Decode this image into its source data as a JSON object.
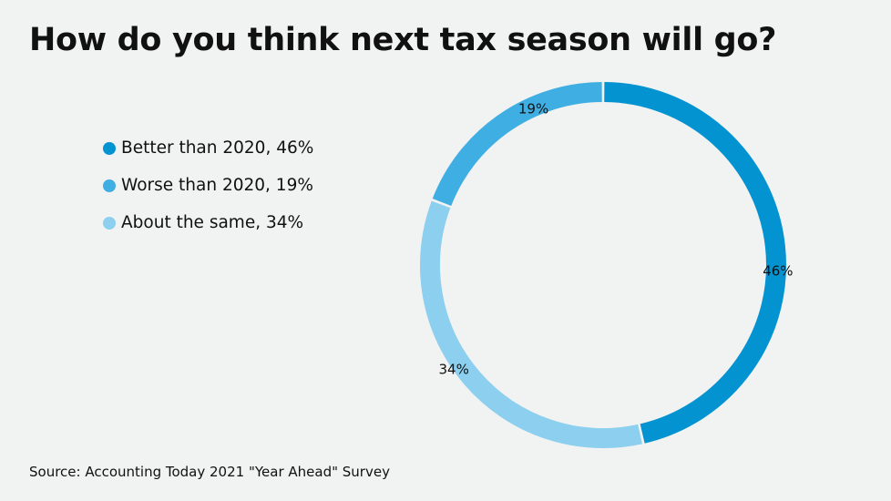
{
  "title": "How do you think next tax season will go?",
  "source": "Source: Accounting Today 2021 \"Year Ahead\" Survey",
  "chart_data": {
    "type": "pie",
    "style": "donut",
    "legend_position": "left",
    "categories": [
      "Better than 2020",
      "Worse than 2020",
      "About the same"
    ],
    "values": [
      46,
      19,
      34
    ],
    "unit": "%",
    "legend_labels": [
      "Better than 2020, 46%",
      "Worse than 2020, 19%",
      "About the same, 34%"
    ],
    "data_labels": [
      "46%",
      "19%",
      "34%"
    ],
    "colors": [
      "#0493d1",
      "#3faee2",
      "#8ccfee"
    ]
  }
}
